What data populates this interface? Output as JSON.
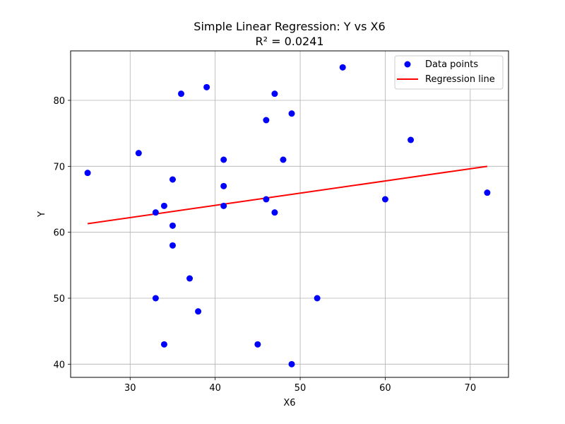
{
  "chart_data": {
    "type": "scatter",
    "title": "Simple Linear Regression: Y vs X6",
    "subtitle": "R² = 0.0241",
    "xlabel": "X6",
    "ylabel": "Y",
    "xlim": [
      23,
      74.5
    ],
    "ylim": [
      38,
      87.5
    ],
    "xticks": [
      30,
      40,
      50,
      60,
      70
    ],
    "yticks": [
      40,
      50,
      60,
      70,
      80
    ],
    "grid": true,
    "legend_position": "top-right",
    "series": [
      {
        "name": "Data points",
        "kind": "scatter",
        "color": "#0000ff",
        "points": [
          [
            25,
            69
          ],
          [
            31,
            72
          ],
          [
            33,
            63
          ],
          [
            33,
            50
          ],
          [
            34,
            64
          ],
          [
            34,
            43
          ],
          [
            35,
            68
          ],
          [
            35,
            61
          ],
          [
            35,
            58
          ],
          [
            36,
            81
          ],
          [
            37,
            53
          ],
          [
            38,
            48
          ],
          [
            39,
            82
          ],
          [
            41,
            71
          ],
          [
            41,
            67
          ],
          [
            41,
            64
          ],
          [
            45,
            43
          ],
          [
            46,
            77
          ],
          [
            46,
            65
          ],
          [
            47,
            81
          ],
          [
            47,
            63
          ],
          [
            48,
            71
          ],
          [
            49,
            78
          ],
          [
            49,
            40
          ],
          [
            52,
            50
          ],
          [
            55,
            85
          ],
          [
            60,
            65
          ],
          [
            63,
            74
          ],
          [
            72,
            66
          ]
        ]
      },
      {
        "name": "Regression line",
        "kind": "line",
        "color": "#ff0000",
        "points": [
          [
            25,
            61.3
          ],
          [
            72,
            70.0
          ]
        ]
      }
    ]
  }
}
